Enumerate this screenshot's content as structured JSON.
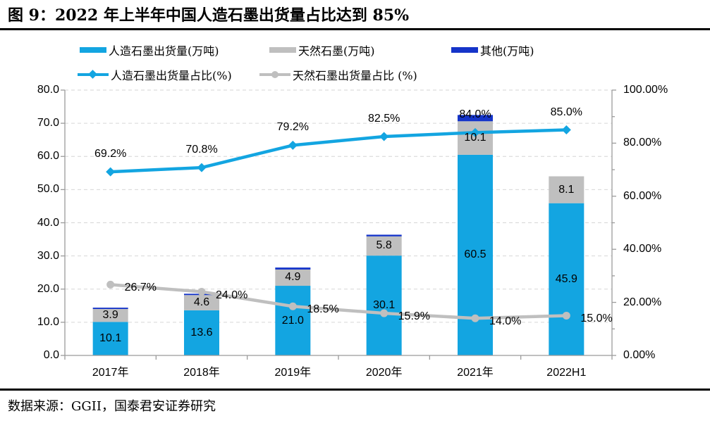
{
  "header": {
    "title": "图 9：2022 年上半年中国人造石墨出货量占比达到 85%"
  },
  "footer": {
    "source": "数据来源：GGII，国泰君安证券研究"
  },
  "chart_data": {
    "type": "combo-stacked-bar-line",
    "categories": [
      "2017年",
      "2018年",
      "2019年",
      "2020年",
      "2021年",
      "2022H1"
    ],
    "legend_position": "top-left",
    "grid": "horizontal-dashed",
    "left_axis": {
      "min": 0,
      "max": 80,
      "step": 10,
      "tick_labels": [
        "80.0",
        "70.0",
        "60.0",
        "50.0",
        "40.0",
        "30.0",
        "20.0",
        "10.0",
        "0.0"
      ]
    },
    "right_axis": {
      "min": 0,
      "max": 100,
      "step": 20,
      "tick_labels": [
        "100.00%",
        "80.00%",
        "60.00%",
        "40.00%",
        "20.00%",
        "0.00%"
      ]
    },
    "bar_series": [
      {
        "name": "人造石墨出货量(万吨)",
        "color": "#13A5E1",
        "values": [
          10.1,
          13.6,
          21.0,
          30.1,
          60.5,
          45.9
        ],
        "labels": [
          "10.1",
          "13.6",
          "21.0",
          "30.1",
          "60.5",
          "45.9"
        ]
      },
      {
        "name": "天然石墨(万吨)",
        "color": "#BFBFBF",
        "values": [
          3.9,
          4.6,
          4.9,
          5.8,
          10.1,
          8.1
        ],
        "labels": [
          "3.9",
          "4.6",
          "4.9",
          "5.8",
          "10.1",
          "8.1"
        ]
      },
      {
        "name": "其他(万吨)",
        "color": "#1534C9",
        "values": [
          0.4,
          0.4,
          0.6,
          0.5,
          1.9,
          0.0
        ]
      }
    ],
    "line_series": [
      {
        "name": "人造石墨出货量占比(%)",
        "color": "#13A5E1",
        "marker": "diamond",
        "label_position": "above",
        "values": [
          69.2,
          70.8,
          79.2,
          82.5,
          84.0,
          85.0
        ],
        "labels": [
          "69.2%",
          "70.8%",
          "79.2%",
          "82.5%",
          "84.0%",
          "85.0%"
        ]
      },
      {
        "name": "天然石墨出货量占比 (%)",
        "color": "#BFBFBF",
        "marker": "circle",
        "label_position": "right",
        "values": [
          26.7,
          24.0,
          18.5,
          15.9,
          14.0,
          15.0
        ],
        "labels": [
          "26.7%",
          "24.0%",
          "18.5%",
          "15.9%",
          "14.0%",
          "15.0%"
        ]
      }
    ]
  }
}
